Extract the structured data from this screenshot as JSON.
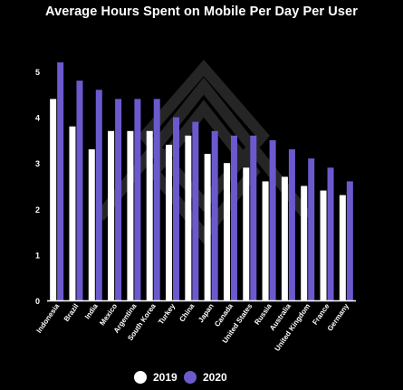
{
  "chart_data": {
    "type": "bar",
    "title": "Average Hours Spent on Mobile Per Day Per User",
    "xlabel": "",
    "ylabel": "",
    "ylim": [
      0,
      5.3
    ],
    "yticks": [
      "0",
      "1",
      "2",
      "3",
      "4",
      "5"
    ],
    "categories": [
      "Indonesia",
      "Brazil",
      "India",
      "Mexico",
      "Argentina",
      "South Korea",
      "Turkey",
      "China",
      "Japan",
      "Canada",
      "United States",
      "Russia",
      "Australia",
      "United Kingdom",
      "France",
      "Germany"
    ],
    "series": [
      {
        "name": "2019",
        "color": "#ffffff",
        "values": [
          4.4,
          3.8,
          3.3,
          3.7,
          3.7,
          3.7,
          3.4,
          3.6,
          3.2,
          3.0,
          2.9,
          2.6,
          2.7,
          2.5,
          2.4,
          2.3
        ]
      },
      {
        "name": "2020",
        "color": "#6a5acd",
        "values": [
          5.2,
          4.8,
          4.6,
          4.4,
          4.4,
          4.4,
          4.0,
          3.9,
          3.7,
          3.6,
          3.6,
          3.5,
          3.3,
          3.1,
          2.9,
          2.6
        ]
      }
    ],
    "grid": false,
    "legend_position": "bottom-center"
  }
}
